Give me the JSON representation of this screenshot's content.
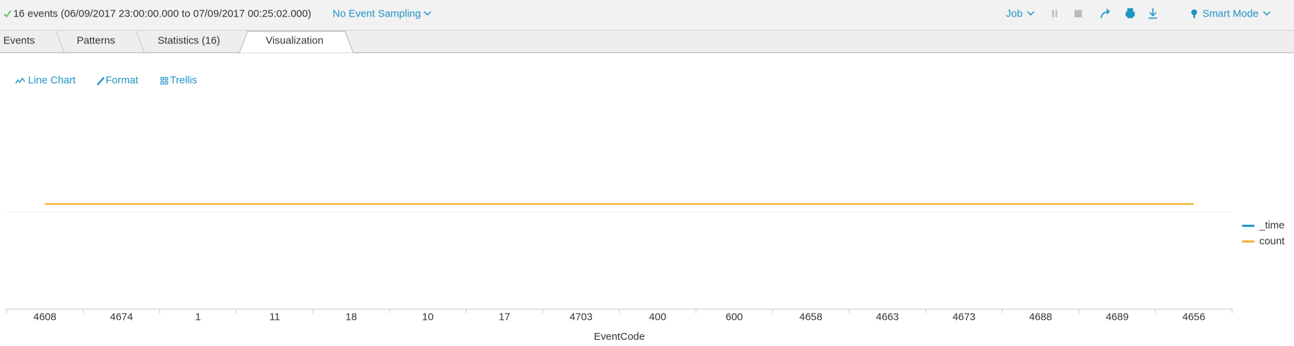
{
  "header": {
    "status": "16 events (06/09/2017 23:00:00.000 to 07/09/2017 00:25:02.000)",
    "sampling": "No Event Sampling",
    "job": "Job",
    "mode": "Smart Mode"
  },
  "tabs": [
    "Events",
    "Patterns",
    "Statistics (16)",
    "Visualization"
  ],
  "toolbar": [
    "Line Chart",
    "Format",
    "Trellis"
  ],
  "chart_data": {
    "type": "line",
    "x_label": "EventCode",
    "categories": [
      "4608",
      "4674",
      "1",
      "11",
      "18",
      "10",
      "17",
      "4703",
      "400",
      "600",
      "4658",
      "4663",
      "4673",
      "4688",
      "4689",
      "4656"
    ],
    "series": [
      {
        "name": "_time",
        "color": "#1e93c6",
        "values": [
          null,
          null,
          null,
          null,
          null,
          null,
          null,
          null,
          null,
          null,
          null,
          null,
          null,
          null,
          null,
          null
        ]
      },
      {
        "name": "count",
        "color": "#f2b12b",
        "values": [
          1,
          1,
          1,
          1,
          1,
          1,
          1,
          1,
          1,
          1,
          1,
          1,
          1,
          1,
          1,
          1
        ]
      }
    ],
    "ylim": [
      0,
      2
    ]
  }
}
